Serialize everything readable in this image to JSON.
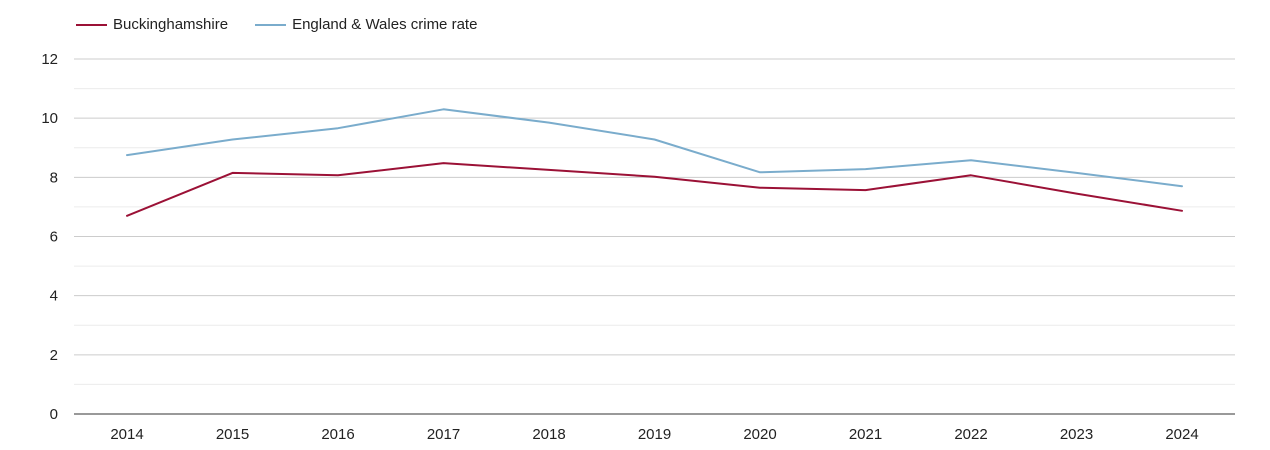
{
  "chart_data": {
    "type": "line",
    "title": "",
    "xlabel": "",
    "ylabel": "",
    "x": [
      "2014",
      "2015",
      "2016",
      "2017",
      "2018",
      "2019",
      "2020",
      "2021",
      "2022",
      "2023",
      "2024"
    ],
    "ylim": [
      0,
      12
    ],
    "yticks": [
      "0",
      "2",
      "4",
      "6",
      "8",
      "10",
      "12"
    ],
    "grid": true,
    "legend_position": "top-left",
    "series": [
      {
        "name": "Buckinghamshire",
        "color": "#9b1136",
        "values": [
          6.7,
          8.15,
          8.07,
          8.48,
          8.25,
          8.02,
          7.65,
          7.57,
          8.07,
          7.45,
          6.87
        ]
      },
      {
        "name": "England & Wales crime rate",
        "color": "#7aaccc",
        "values": [
          8.75,
          9.28,
          9.66,
          10.3,
          9.85,
          9.28,
          8.17,
          8.28,
          8.58,
          8.15,
          7.7
        ]
      }
    ]
  }
}
